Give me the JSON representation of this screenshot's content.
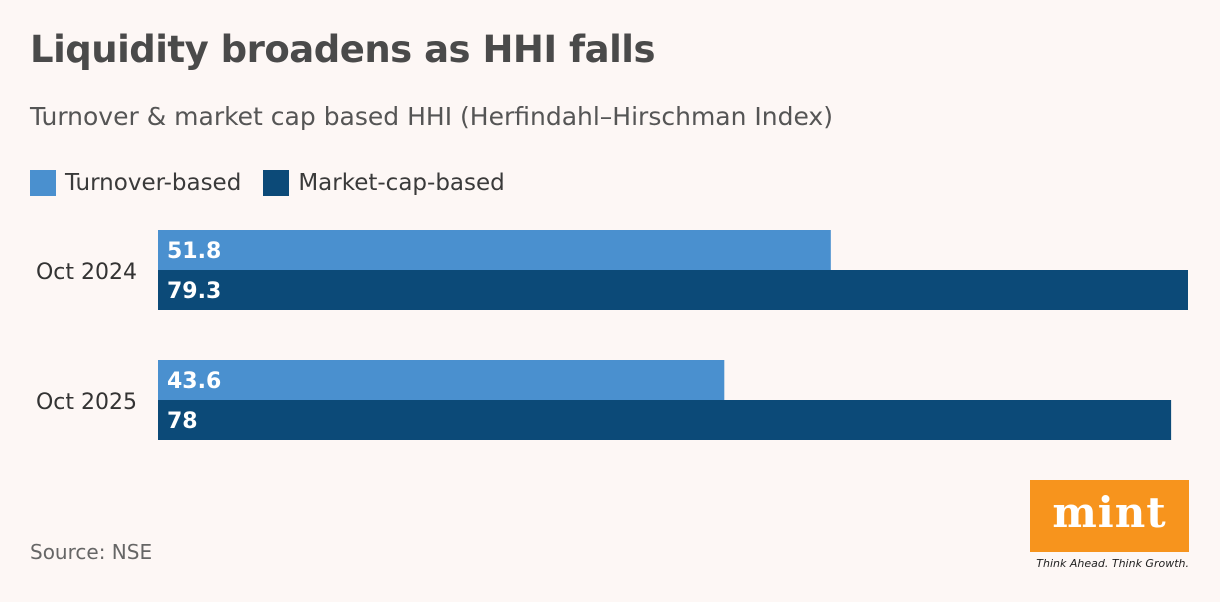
{
  "title": "Liquidity broadens as HHI falls",
  "subtitle": "Turnover & market cap based HHI (Herfindahl–Hirschman Index)",
  "source": "Source: NSE",
  "logo": {
    "wordmark": "mint",
    "tagline": "Think Ahead. Think Growth."
  },
  "colors": {
    "turnover": "#4a90cf",
    "marketcap": "#0c4a78",
    "logo_bg": "#f7941d"
  },
  "chart_data": {
    "type": "bar",
    "orientation": "horizontal",
    "categories": [
      "Oct 2024",
      "Oct 2025"
    ],
    "series": [
      {
        "name": "Turnover-based",
        "values": [
          51.8,
          43.6
        ]
      },
      {
        "name": "Market-cap-based",
        "values": [
          79.3,
          78
        ]
      }
    ],
    "data_labels": [
      [
        "51.8",
        "43.6"
      ],
      [
        "79.3",
        "78"
      ]
    ],
    "legend_placement": "top-left",
    "grid": false,
    "xlim": [
      0,
      79.3
    ]
  }
}
